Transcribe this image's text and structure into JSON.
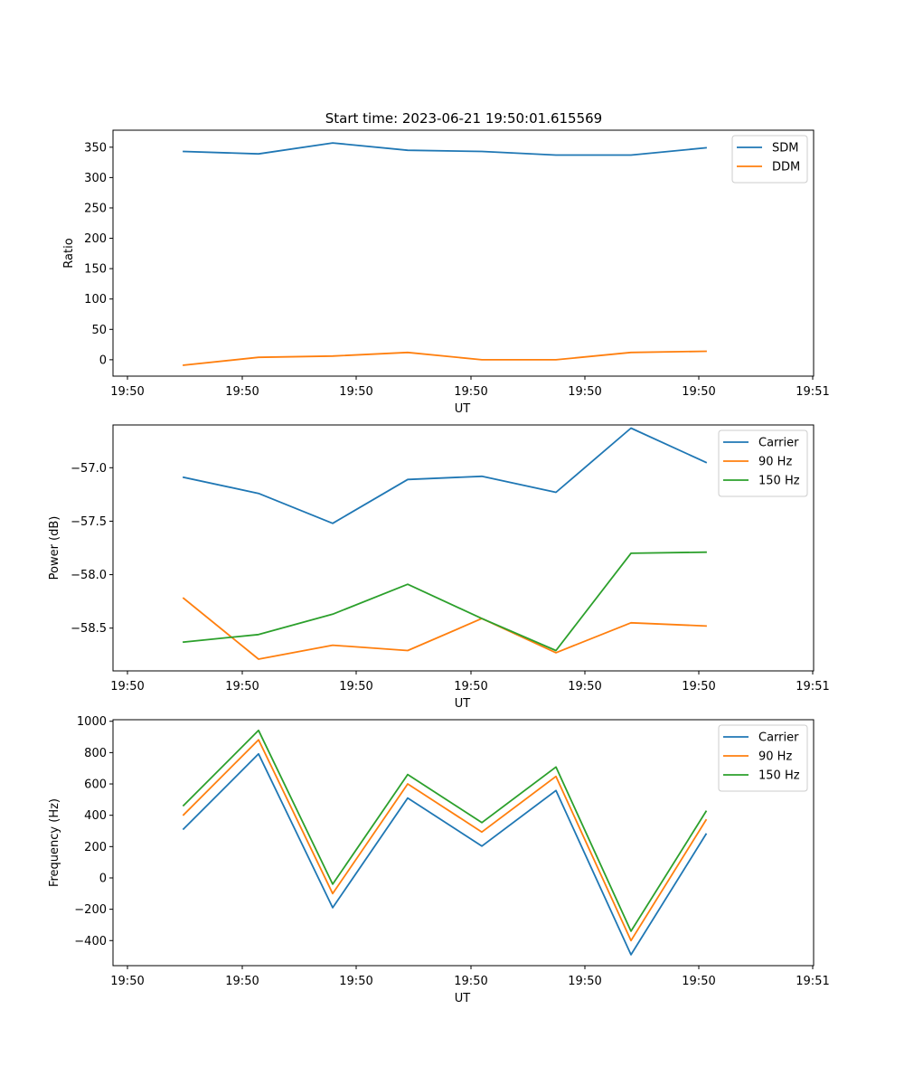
{
  "figure": {
    "title": "Start time: 2023-06-21 19:50:01.615569"
  },
  "chart_data": [
    {
      "type": "line",
      "title": "Start time: 2023-06-21 19:50:01.615569",
      "xlabel": "UT",
      "ylabel": "Ratio",
      "x_tick_labels": [
        "19:50",
        "19:50",
        "19:50",
        "19:50",
        "19:50",
        "19:50",
        "19:50"
      ],
      "x_end_tick_label": "19:51",
      "y_ticks": [
        0,
        50,
        100,
        150,
        200,
        250,
        300,
        350
      ],
      "y_tick_labels": [
        "0",
        "50",
        "100",
        "150",
        "200",
        "250",
        "300",
        "350"
      ],
      "ylim": [
        -27,
        378
      ],
      "legend_position": "top-right",
      "series": [
        {
          "name": "SDM",
          "color": "#1f77b4",
          "values": [
            343,
            339,
            357,
            345,
            343,
            337,
            337,
            349
          ]
        },
        {
          "name": "DDM",
          "color": "#ff7f0e",
          "values": [
            -9,
            4,
            6,
            12,
            0,
            0,
            12,
            14
          ]
        }
      ]
    },
    {
      "type": "line",
      "title": "",
      "xlabel": "UT",
      "ylabel": "Power (dB)",
      "x_tick_labels": [
        "19:50",
        "19:50",
        "19:50",
        "19:50",
        "19:50",
        "19:50",
        "19:50"
      ],
      "x_end_tick_label": "19:51",
      "y_ticks": [
        -58.5,
        -58.0,
        -57.5,
        -57.0
      ],
      "y_tick_labels": [
        "−58.5",
        "−58.0",
        "−57.5",
        "−57.0"
      ],
      "ylim": [
        -58.9,
        -56.6
      ],
      "legend_position": "top-right",
      "series": [
        {
          "name": "Carrier",
          "color": "#1f77b4",
          "values": [
            -57.09,
            -57.24,
            -57.52,
            -57.11,
            -57.08,
            -57.23,
            -56.63,
            -56.95
          ]
        },
        {
          "name": "90 Hz",
          "color": "#ff7f0e",
          "values": [
            -58.22,
            -58.79,
            -58.66,
            -58.71,
            -58.41,
            -58.73,
            -58.45,
            -58.48
          ]
        },
        {
          "name": "150 Hz",
          "color": "#2ca02c",
          "values": [
            -58.63,
            -58.56,
            -58.37,
            -58.09,
            -58.41,
            -58.71,
            -57.8,
            -57.79
          ]
        }
      ]
    },
    {
      "type": "line",
      "title": "",
      "xlabel": "UT",
      "ylabel": "Frequency (Hz)",
      "x_tick_labels": [
        "19:50",
        "19:50",
        "19:50",
        "19:50",
        "19:50",
        "19:50",
        "19:50"
      ],
      "x_end_tick_label": "19:51",
      "y_ticks": [
        -400,
        -200,
        0,
        200,
        400,
        600,
        800,
        1000
      ],
      "y_tick_labels": [
        "−400",
        "−200",
        "0",
        "200",
        "400",
        "600",
        "800",
        "1000"
      ],
      "ylim": [
        -560,
        1010
      ],
      "legend_position": "top-right",
      "series": [
        {
          "name": "Carrier",
          "color": "#1f77b4",
          "values": [
            312,
            792,
            -190,
            510,
            203,
            558,
            -490,
            280
          ]
        },
        {
          "name": "90 Hz",
          "color": "#ff7f0e",
          "values": [
            402,
            882,
            -100,
            600,
            293,
            648,
            -400,
            370
          ]
        },
        {
          "name": "150 Hz",
          "color": "#2ca02c",
          "values": [
            462,
            942,
            -40,
            660,
            353,
            708,
            -340,
            425
          ]
        }
      ]
    }
  ]
}
